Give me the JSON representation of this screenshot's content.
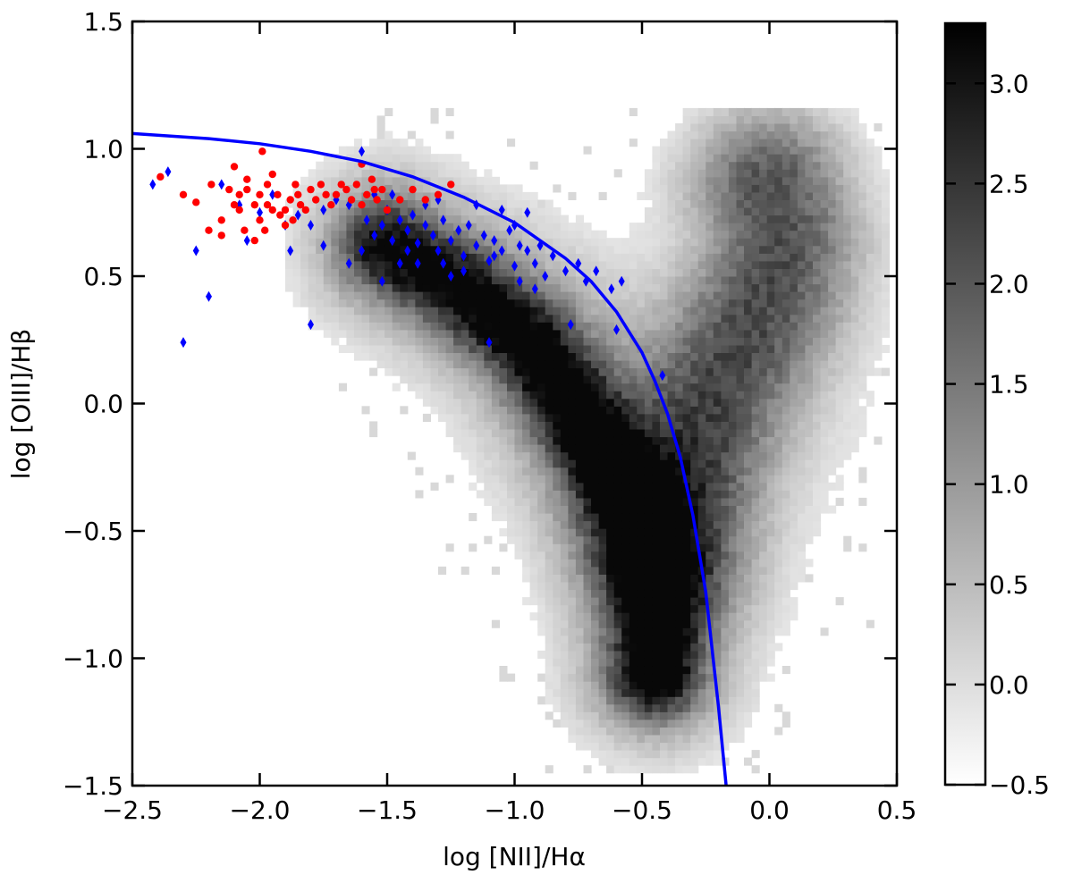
{
  "chart_data": [
    {
      "type": "heatmap",
      "xlabel": "log [NII]/Hα",
      "ylabel": "log [OIII]/Hβ",
      "xlim": [
        -2.5,
        0.5
      ],
      "ylim": [
        -1.5,
        1.5
      ],
      "x_ticks": [
        "−2.5",
        "−2.0",
        "−1.5",
        "−1.0",
        "−0.5",
        "0.0",
        "0.5"
      ],
      "x_tick_values": [
        -2.5,
        -2.0,
        -1.5,
        -1.0,
        -0.5,
        0.0,
        0.5
      ],
      "y_ticks": [
        "−1.5",
        "−1.0",
        "−0.5",
        "0.0",
        "0.5",
        "1.0",
        "1.5"
      ],
      "y_tick_values": [
        -1.5,
        -1.0,
        -0.5,
        0.0,
        0.5,
        1.0,
        1.5
      ],
      "colormap": "gray_r",
      "grid": false,
      "density_components": [
        {
          "name": "star-forming sequence",
          "points": [
            [
              -1.5,
              0.62
            ],
            [
              -1.2,
              0.45
            ],
            [
              -0.95,
              0.25
            ],
            [
              -0.8,
              0.05
            ],
            [
              -0.65,
              -0.2
            ],
            [
              -0.52,
              -0.45
            ],
            [
              -0.46,
              -0.65
            ],
            [
              -0.44,
              -0.85
            ],
            [
              -0.45,
              -1.05
            ]
          ],
          "peak": 3.3
        },
        {
          "name": "agn branch",
          "points": [
            [
              -0.4,
              -0.55
            ],
            [
              -0.3,
              -0.2
            ],
            [
              -0.2,
              0.05
            ],
            [
              -0.1,
              0.25
            ],
            [
              0.0,
              0.45
            ],
            [
              0.05,
              0.65
            ],
            [
              0.0,
              0.85
            ]
          ],
          "peak": 2.4
        }
      ],
      "series": [
        {
          "marker": "diamond",
          "color": "#0000ff",
          "points": [
            [
              -2.42,
              0.86
            ],
            [
              -2.36,
              0.91
            ],
            [
              -2.3,
              0.24
            ],
            [
              -2.25,
              0.6
            ],
            [
              -2.2,
              0.42
            ],
            [
              -2.15,
              0.86
            ],
            [
              -2.08,
              0.78
            ],
            [
              -2.0,
              0.75
            ],
            [
              -1.95,
              0.82
            ],
            [
              -1.9,
              0.7
            ],
            [
              -1.85,
              0.74
            ],
            [
              -1.8,
              0.7
            ],
            [
              -1.8,
              0.31
            ],
            [
              -1.75,
              0.76
            ],
            [
              -1.7,
              0.8
            ],
            [
              -1.65,
              0.78
            ],
            [
              -1.6,
              0.99
            ],
            [
              -1.58,
              0.72
            ],
            [
              -1.55,
              0.66
            ],
            [
              -1.52,
              0.7
            ],
            [
              -1.5,
              0.76
            ],
            [
              -1.48,
              0.64
            ],
            [
              -1.45,
              0.72
            ],
            [
              -1.42,
              0.68
            ],
            [
              -1.4,
              0.74
            ],
            [
              -1.38,
              0.63
            ],
            [
              -1.35,
              0.7
            ],
            [
              -1.32,
              0.66
            ],
            [
              -1.3,
              0.6
            ],
            [
              -1.28,
              0.72
            ],
            [
              -1.25,
              0.64
            ],
            [
              -1.22,
              0.68
            ],
            [
              -1.2,
              0.58
            ],
            [
              -1.18,
              0.7
            ],
            [
              -1.15,
              0.62
            ],
            [
              -1.12,
              0.66
            ],
            [
              -1.1,
              0.56
            ],
            [
              -1.08,
              0.64
            ],
            [
              -1.05,
              0.6
            ],
            [
              -1.02,
              0.68
            ],
            [
              -1.0,
              0.54
            ],
            [
              -0.98,
              0.62
            ],
            [
              -0.95,
              0.6
            ],
            [
              -0.92,
              0.55
            ],
            [
              -0.9,
              0.62
            ],
            [
              -0.88,
              0.5
            ],
            [
              -0.85,
              0.58
            ],
            [
              -0.8,
              0.52
            ],
            [
              -0.75,
              0.55
            ],
            [
              -0.72,
              0.48
            ],
            [
              -0.68,
              0.52
            ],
            [
              -0.62,
              0.45
            ],
            [
              -0.58,
              0.48
            ],
            [
              -1.1,
              0.24
            ],
            [
              -0.78,
              0.31
            ],
            [
              -0.6,
              0.29
            ],
            [
              -0.42,
              0.11
            ],
            [
              -1.52,
              0.48
            ],
            [
              -1.65,
              0.55
            ],
            [
              -1.45,
              0.55
            ],
            [
              -1.25,
              0.5
            ],
            [
              -1.35,
              0.78
            ],
            [
              -1.3,
              0.8
            ],
            [
              -1.15,
              0.78
            ],
            [
              -1.05,
              0.76
            ],
            [
              -1.0,
              0.7
            ],
            [
              -0.95,
              0.75
            ],
            [
              -1.55,
              0.82
            ],
            [
              -1.48,
              0.82
            ],
            [
              -1.6,
              0.6
            ],
            [
              -1.75,
              0.62
            ],
            [
              -1.88,
              0.6
            ],
            [
              -2.05,
              0.64
            ],
            [
              -1.42,
              0.6
            ],
            [
              -1.38,
              0.55
            ],
            [
              -1.28,
              0.55
            ],
            [
              -1.2,
              0.52
            ],
            [
              -1.08,
              0.58
            ],
            [
              -0.98,
              0.48
            ],
            [
              -0.92,
              0.45
            ]
          ]
        },
        {
          "marker": "circle",
          "color": "#ff0000",
          "points": [
            [
              -2.39,
              0.89
            ],
            [
              -2.3,
              0.82
            ],
            [
              -2.25,
              0.79
            ],
            [
              -2.19,
              0.86
            ],
            [
              -2.15,
              0.72
            ],
            [
              -2.12,
              0.84
            ],
            [
              -2.1,
              0.93
            ],
            [
              -2.08,
              0.76
            ],
            [
              -2.06,
              0.68
            ],
            [
              -2.05,
              0.84
            ],
            [
              -2.02,
              0.78
            ],
            [
              -2.0,
              0.72
            ],
            [
              -1.99,
              0.99
            ],
            [
              -1.97,
              0.86
            ],
            [
              -1.95,
              0.76
            ],
            [
              -1.93,
              0.82
            ],
            [
              -1.9,
              0.7
            ],
            [
              -1.88,
              0.8
            ],
            [
              -1.86,
              0.86
            ],
            [
              -1.84,
              0.78
            ],
            [
              -1.82,
              0.76
            ],
            [
              -1.8,
              0.84
            ],
            [
              -1.78,
              0.8
            ],
            [
              -1.76,
              0.86
            ],
            [
              -1.74,
              0.82
            ],
            [
              -1.72,
              0.78
            ],
            [
              -1.7,
              0.82
            ],
            [
              -1.68,
              0.86
            ],
            [
              -1.66,
              0.84
            ],
            [
              -1.64,
              0.8
            ],
            [
              -1.62,
              0.86
            ],
            [
              -1.6,
              0.78
            ],
            [
              -1.58,
              0.82
            ],
            [
              -1.56,
              0.88
            ],
            [
              -1.54,
              0.8
            ],
            [
              -1.52,
              0.84
            ],
            [
              -1.5,
              0.76
            ],
            [
              -1.45,
              0.8
            ],
            [
              -1.4,
              0.84
            ],
            [
              -1.35,
              0.8
            ],
            [
              -1.3,
              0.82
            ],
            [
              -1.25,
              0.86
            ],
            [
              -2.2,
              0.68
            ],
            [
              -2.15,
              0.66
            ],
            [
              -2.1,
              0.78
            ],
            [
              -2.05,
              0.88
            ],
            [
              -2.0,
              0.82
            ],
            [
              -1.95,
              0.9
            ],
            [
              -1.9,
              0.76
            ],
            [
              -1.85,
              0.82
            ],
            [
              -1.6,
              0.94
            ],
            [
              -1.55,
              0.84
            ],
            [
              -2.02,
              0.64
            ],
            [
              -1.98,
              0.68
            ],
            [
              -1.92,
              0.74
            ],
            [
              -1.87,
              0.72
            ],
            [
              -1.97,
              0.78
            ],
            [
              -2.08,
              0.82
            ]
          ]
        },
        {
          "type": "line",
          "color": "#0000ff",
          "points": [
            [
              -2.5,
              1.06
            ],
            [
              -2.2,
              1.04
            ],
            [
              -2.0,
              1.02
            ],
            [
              -1.8,
              0.99
            ],
            [
              -1.6,
              0.95
            ],
            [
              -1.4,
              0.89
            ],
            [
              -1.2,
              0.81
            ],
            [
              -1.0,
              0.71
            ],
            [
              -0.8,
              0.57
            ],
            [
              -0.7,
              0.48
            ],
            [
              -0.6,
              0.36
            ],
            [
              -0.5,
              0.2
            ],
            [
              -0.45,
              0.09
            ],
            [
              -0.4,
              -0.04
            ],
            [
              -0.35,
              -0.21
            ],
            [
              -0.3,
              -0.44
            ],
            [
              -0.25,
              -0.74
            ],
            [
              -0.2,
              -1.19
            ],
            [
              -0.17,
              -1.5
            ]
          ]
        }
      ]
    },
    {
      "type": "colorbar",
      "colormap": "gray_r",
      "range": [
        -0.5,
        3.3
      ],
      "ticks": [
        "−0.5",
        "0.0",
        "0.5",
        "1.0",
        "1.5",
        "2.0",
        "2.5",
        "3.0"
      ],
      "tick_values": [
        -0.5,
        0.0,
        0.5,
        1.0,
        1.5,
        2.0,
        2.5,
        3.0
      ]
    }
  ]
}
